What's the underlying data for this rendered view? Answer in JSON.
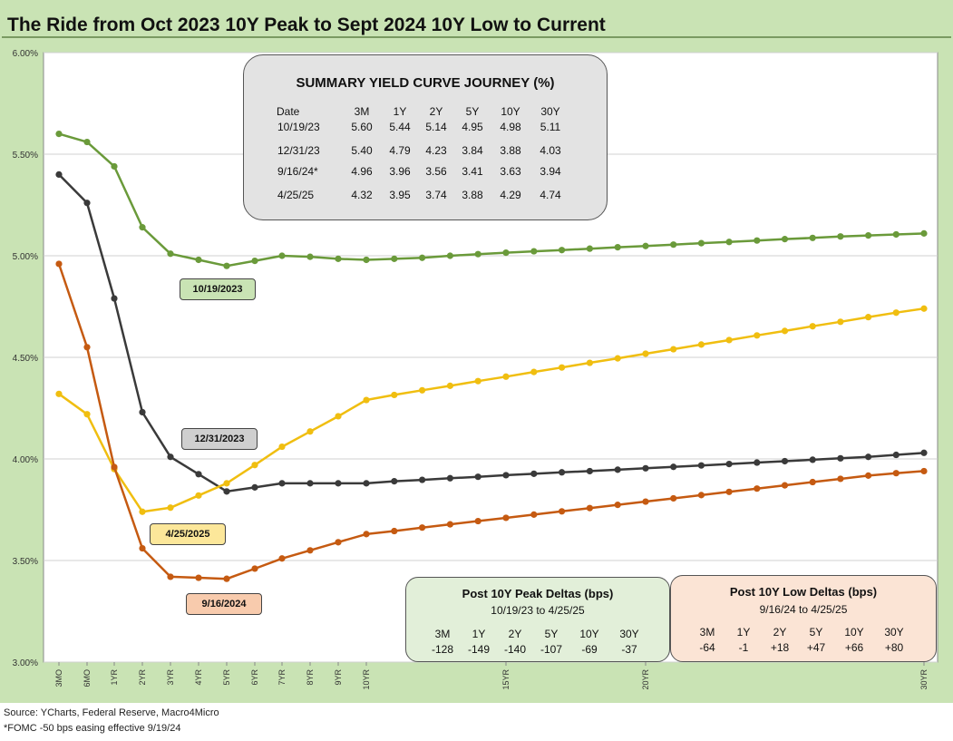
{
  "title": "The Ride from Oct 2023 10Y Peak to Sept 2024 10Y Low to Current",
  "source_line1": "Source: YCharts, Federal Reserve, Macro4Micro",
  "source_line2": "*FOMC -50 bps easing effective  9/19/24",
  "summary": {
    "title": "SUMMARY YIELD CURVE JOURNEY (%)",
    "headers": [
      "Date",
      "3M",
      "1Y",
      "2Y",
      "5Y",
      "10Y",
      "30Y"
    ],
    "rows": [
      [
        "10/19/23",
        "5.60",
        "5.44",
        "5.14",
        "4.95",
        "4.98",
        "5.11"
      ],
      [
        "12/31/23",
        "5.40",
        "4.79",
        "4.23",
        "3.84",
        "3.88",
        "4.03"
      ],
      [
        "9/16/24*",
        "4.96",
        "3.96",
        "3.56",
        "3.41",
        "3.63",
        "3.94"
      ],
      [
        "4/25/25",
        "4.32",
        "3.95",
        "3.74",
        "3.88",
        "4.29",
        "4.74"
      ]
    ]
  },
  "peak_deltas": {
    "title": "Post 10Y Peak Deltas (bps)",
    "subtitle": "10/19/23 to 4/25/25",
    "headers": [
      "3M",
      "1Y",
      "2Y",
      "5Y",
      "10Y",
      "30Y"
    ],
    "values": [
      "-128",
      "-149",
      "-140",
      "-107",
      "-69",
      "-37"
    ]
  },
  "low_deltas": {
    "title": "Post 10Y Low Deltas (bps)",
    "subtitle": "9/16/24 to 4/25/25",
    "headers": [
      "3M",
      "1Y",
      "2Y",
      "5Y",
      "10Y",
      "30Y"
    ],
    "values": [
      "-64",
      "-1",
      "+18",
      "+47",
      "+66",
      "+80"
    ]
  },
  "chart_data": {
    "type": "line",
    "title": "The Ride from Oct 2023 10Y Peak to Sept 2024 10Y Low to Current",
    "xlabel": "",
    "ylabel": "",
    "ylim": [
      3.0,
      6.0
    ],
    "yticks": [
      "3.00%",
      "3.50%",
      "4.00%",
      "4.50%",
      "5.00%",
      "5.50%",
      "6.00%"
    ],
    "ytick_values": [
      3.0,
      3.5,
      4.0,
      4.5,
      5.0,
      5.5,
      6.0
    ],
    "grid": true,
    "x_tick_labels": [
      "3MO",
      "6MO",
      "1YR",
      "2YR",
      "3YR",
      "4YR",
      "5YR",
      "6YR",
      "7YR",
      "8YR",
      "9YR",
      "10YR",
      "15YR",
      "20YR",
      "30YR"
    ],
    "x_tick_years": [
      0.25,
      0.5,
      1,
      2,
      3,
      4,
      5,
      6,
      7,
      8,
      9,
      10,
      15,
      20,
      30
    ],
    "x_years": [
      0.25,
      0.5,
      1,
      2,
      3,
      4,
      5,
      6,
      7,
      8,
      9,
      10,
      11,
      12,
      13,
      14,
      15,
      16,
      17,
      18,
      19,
      20,
      21,
      22,
      23,
      24,
      25,
      26,
      27,
      28,
      29,
      30
    ],
    "series": [
      {
        "name": "10/19/2023",
        "color": "#6a9a3a",
        "label_color": "#c9e3b4",
        "label_at": [
          0.0,
          4.84
        ],
        "values": [
          5.6,
          5.56,
          5.44,
          5.14,
          5.01,
          4.98,
          4.95,
          4.975,
          5.0,
          4.995,
          4.985,
          4.98,
          4.985,
          4.99,
          5.0,
          5.008,
          5.015,
          5.022,
          5.028,
          5.035,
          5.042,
          5.048,
          5.055,
          5.062,
          5.068,
          5.075,
          5.082,
          5.088,
          5.095,
          5.1,
          5.105,
          5.11
        ]
      },
      {
        "name": "12/31/2023",
        "color": "#3a3a3a",
        "label_color": "#cfcfcf",
        "label_at": [
          0.0,
          4.09
        ],
        "values": [
          5.4,
          5.26,
          4.79,
          4.23,
          4.01,
          3.925,
          3.84,
          3.86,
          3.88,
          3.88,
          3.88,
          3.88,
          3.89,
          3.897,
          3.905,
          3.912,
          3.92,
          3.927,
          3.934,
          3.94,
          3.947,
          3.954,
          3.961,
          3.968,
          3.975,
          3.982,
          3.989,
          3.996,
          4.003,
          4.01,
          4.02,
          4.03
        ]
      },
      {
        "name": "4/25/2025",
        "color": "#f0be10",
        "label_color": "#fce79a",
        "label_at": [
          0.0,
          3.69
        ],
        "values": [
          4.32,
          4.22,
          3.95,
          3.74,
          3.76,
          3.82,
          3.88,
          3.97,
          4.06,
          4.135,
          4.21,
          4.29,
          4.315,
          4.338,
          4.36,
          4.383,
          4.405,
          4.428,
          4.45,
          4.473,
          4.495,
          4.518,
          4.54,
          4.563,
          4.585,
          4.608,
          4.63,
          4.653,
          4.675,
          4.698,
          4.72,
          4.74
        ]
      },
      {
        "name": "9/16/2024",
        "color": "#c55a11",
        "label_color": "#f8cbad",
        "label_at": [
          0.0,
          3.3
        ],
        "values": [
          4.96,
          4.55,
          3.96,
          3.56,
          3.42,
          3.415,
          3.41,
          3.46,
          3.51,
          3.55,
          3.59,
          3.63,
          3.645,
          3.662,
          3.678,
          3.694,
          3.71,
          3.726,
          3.742,
          3.758,
          3.774,
          3.79,
          3.806,
          3.822,
          3.838,
          3.854,
          3.87,
          3.886,
          3.902,
          3.918,
          3.93,
          3.94
        ]
      }
    ]
  }
}
